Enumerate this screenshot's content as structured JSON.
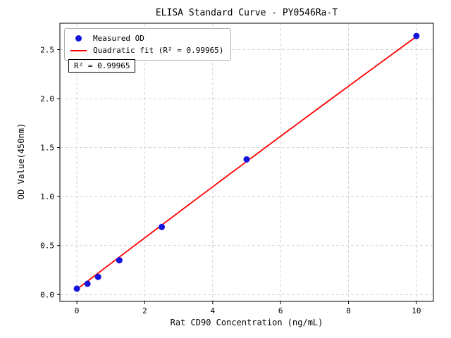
{
  "chart_data": {
    "type": "scatter",
    "title": "ELISA Standard Curve - PY0546Ra-T",
    "xlabel": "Rat CD90 Concentration (ng/mL)",
    "ylabel": "OD Value(450nm)",
    "xlim": [
      -0.5,
      10.5
    ],
    "ylim": [
      -0.07,
      2.77
    ],
    "x_ticks": [
      0,
      2,
      4,
      6,
      8,
      10
    ],
    "x_tick_labels": [
      "0",
      "2",
      "4",
      "6",
      "8",
      "10"
    ],
    "y_ticks": [
      0.0,
      0.5,
      1.0,
      1.5,
      2.0,
      2.5
    ],
    "y_tick_labels": [
      "0.0",
      "0.5",
      "1.0",
      "1.5",
      "2.0",
      "2.5"
    ],
    "grid": true,
    "legend_position": "upper left",
    "series": [
      {
        "name": "Measured OD",
        "type": "scatter",
        "color": "#1414dc",
        "x": [
          0,
          0.3125,
          0.625,
          1.25,
          2.5,
          5,
          10
        ],
        "y": [
          0.06,
          0.11,
          0.18,
          0.35,
          0.69,
          1.38,
          2.64
        ]
      },
      {
        "name": "Quadratic fit (R² = 0.99965)",
        "type": "line",
        "color": "#ff0000",
        "fit_coefficients": [
          0.0535,
          0.264,
          -0.0006
        ],
        "x_range": [
          0,
          10
        ]
      }
    ],
    "annotation": "R² = 0.99965",
    "r_squared": 0.99965,
    "colors": {
      "grid": "#c9c9c9",
      "axis": "#000000",
      "background": "#ffffff"
    }
  }
}
